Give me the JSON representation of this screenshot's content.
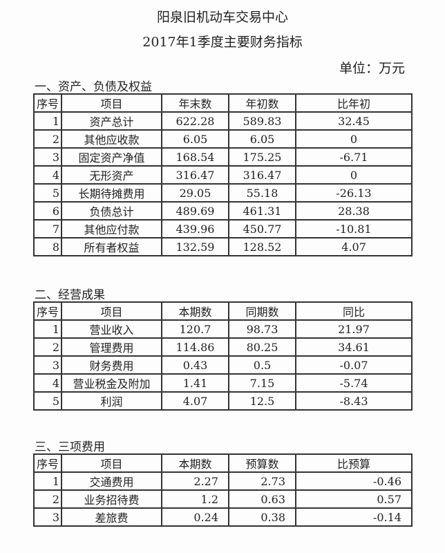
{
  "header": {
    "org": "阳泉旧机动车交易中心",
    "title": "2017年1季度主要财务指标",
    "unit": "单位：万元"
  },
  "sections": [
    {
      "title": "一、资产、负债及权益",
      "columns": [
        "序号",
        "项目",
        "年末数",
        "年初数",
        "比年初"
      ],
      "rows": [
        [
          "1",
          "资产总计",
          "622.28",
          "589.83",
          "32.45"
        ],
        [
          "2",
          "其他应收款",
          "6.05",
          "6.05",
          "0"
        ],
        [
          "3",
          "固定资产净值",
          "168.54",
          "175.25",
          "-6.71"
        ],
        [
          "4",
          "无形资产",
          "316.47",
          "316.47",
          "0"
        ],
        [
          "5",
          "长期待摊费用",
          "29.05",
          "55.18",
          "-26.13"
        ],
        [
          "6",
          "负债总计",
          "489.69",
          "461.31",
          "28.38"
        ],
        [
          "7",
          "其他应付款",
          "439.96",
          "450.77",
          "-10.81"
        ],
        [
          "8",
          "所有者权益",
          "132.59",
          "128.52",
          "4.07"
        ]
      ]
    },
    {
      "title": "二、经营成果",
      "columns": [
        "序号",
        "项目",
        "本期数",
        "同期数",
        "同比"
      ],
      "rows": [
        [
          "1",
          "营业收入",
          "120.7",
          "98.73",
          "21.97"
        ],
        [
          "2",
          "管理费用",
          "114.86",
          "80.25",
          "34.61"
        ],
        [
          "3",
          "财务费用",
          "0.43",
          "0.5",
          "-0.07"
        ],
        [
          "4",
          "营业税金及附加",
          "1.41",
          "7.15",
          "-5.74"
        ],
        [
          "5",
          "利润",
          "4.07",
          "12.5",
          "-8.43"
        ]
      ]
    },
    {
      "title": "三、三项费用",
      "columns": [
        "序号",
        "项目",
        "本期数",
        "预算数",
        "比预算"
      ],
      "rows": [
        [
          "1",
          "交通费用",
          "2.27",
          "2.73",
          "-0.46"
        ],
        [
          "2",
          "业务招待费",
          "1.2",
          "0.63",
          "0.57"
        ],
        [
          "3",
          "差旅费",
          "0.24",
          "0.38",
          "-0.14"
        ]
      ]
    }
  ]
}
